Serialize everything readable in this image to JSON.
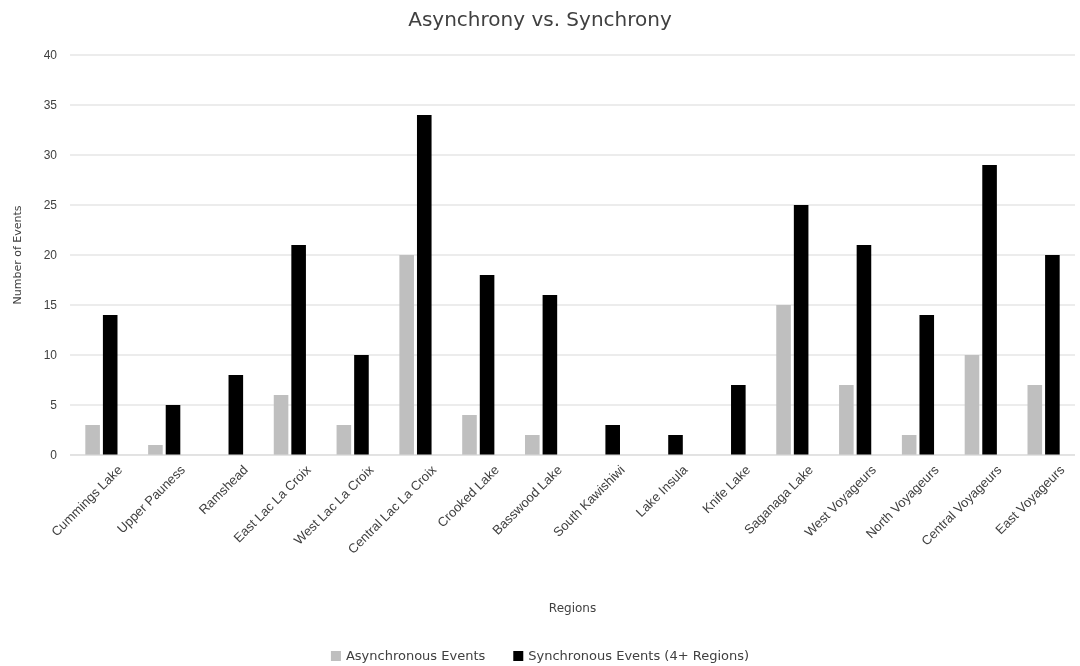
{
  "chart_data": {
    "type": "bar",
    "title": "Asynchrony vs. Synchrony",
    "xlabel": "Regions",
    "ylabel": "Number of Events",
    "categories": [
      "Cummings Lake",
      "Upper Pauness",
      "Ramshead",
      "East Lac La Croix",
      "West Lac La Croix",
      "Central Lac La Croix",
      "Crooked Lake",
      "Basswood Lake",
      "South Kawishiwi",
      "Lake Insula",
      "Knife Lake",
      "Saganaga Lake",
      "West Voyageurs",
      "North Voyageurs",
      "Central Voyageurs",
      "East Voyageurs"
    ],
    "series": [
      {
        "name": "Asynchronous Events",
        "color": "#bfbfbf",
        "values": [
          3,
          1,
          0,
          6,
          3,
          20,
          4,
          2,
          0,
          0,
          0,
          15,
          7,
          2,
          10,
          7
        ]
      },
      {
        "name": "Synchronous Events (4+ Regions)",
        "color": "#000000",
        "values": [
          14,
          5,
          8,
          21,
          10,
          34,
          18,
          16,
          3,
          2,
          7,
          25,
          21,
          14,
          29,
          20
        ]
      }
    ],
    "ylim": [
      0,
      40
    ],
    "yticks": [
      0,
      5,
      10,
      15,
      20,
      25,
      30,
      35,
      40
    ],
    "grid": "y",
    "legend": "bottom"
  }
}
